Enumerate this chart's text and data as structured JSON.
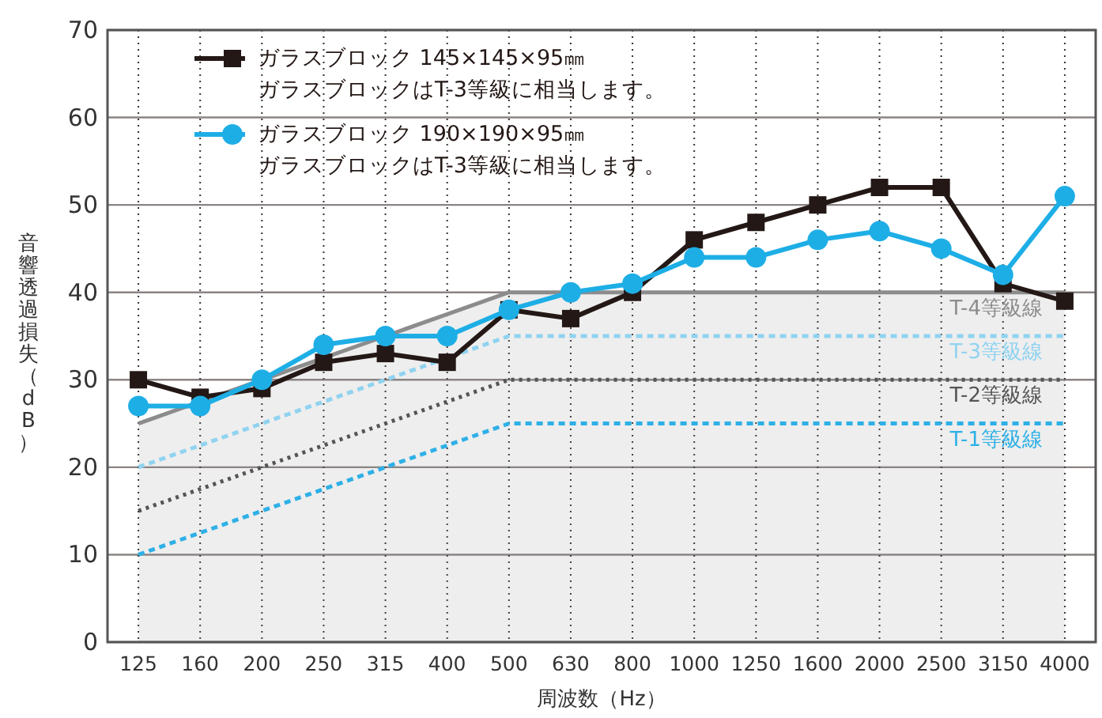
{
  "chart_data": {
    "type": "line",
    "xlabel": "周波数（Hz）",
    "ylabel": "音響透過損失（dB）",
    "categories": [
      "125",
      "160",
      "200",
      "250",
      "315",
      "400",
      "500",
      "630",
      "800",
      "1000",
      "1250",
      "1600",
      "2000",
      "2500",
      "3150",
      "4000"
    ],
    "annotations": [
      "ガラスブロックはT-3等級に相当します。",
      "ガラスブロックはT-3等級に相当します。"
    ],
    "ylim": [
      0,
      70
    ],
    "yticks": [
      0,
      10,
      20,
      30,
      40,
      50,
      60,
      70
    ],
    "grid": true,
    "legend": "top left",
    "series": [
      {
        "name": "T-4等級線",
        "type": "area",
        "color": "#8c8c8c",
        "marker": "none",
        "line_style": "solid",
        "values": [
          25,
          27.5,
          30,
          32.5,
          35,
          37.5,
          40,
          40,
          40,
          40,
          40,
          40,
          40,
          40,
          40,
          40
        ]
      },
      {
        "name": "T-3等級線",
        "color": "#8fd3f0",
        "marker": "none",
        "line_style": "dashed",
        "values": [
          20,
          22.5,
          25,
          27.5,
          30,
          32.5,
          35,
          35,
          35,
          35,
          35,
          35,
          35,
          35,
          35,
          35
        ]
      },
      {
        "name": "T-2等級線",
        "color": "#555555",
        "marker": "none",
        "line_style": "dotted",
        "values": [
          15,
          17.5,
          20,
          22.5,
          25,
          27.5,
          30,
          30,
          30,
          30,
          30,
          30,
          30,
          30,
          30,
          30
        ]
      },
      {
        "name": "T-1等級線",
        "color": "#2eb0e6",
        "marker": "none",
        "line_style": "dashed",
        "values": [
          10,
          12.5,
          15,
          17.5,
          20,
          22.5,
          25,
          25,
          25,
          25,
          25,
          25,
          25,
          25,
          25,
          25
        ]
      },
      {
        "name": "ガラスブロック 145×145×95㎜",
        "color": "#231815",
        "marker": "square",
        "line_style": "solid",
        "values": [
          30,
          28,
          29,
          32,
          33,
          32,
          38,
          37,
          40,
          46,
          48,
          50,
          52,
          52,
          41,
          39
        ]
      },
      {
        "name": "ガラスブロック 190×190×95㎜",
        "color": "#1eaee6",
        "marker": "circle",
        "line_style": "solid",
        "values": [
          27,
          27,
          30,
          34,
          35,
          35,
          38,
          40,
          41,
          44,
          44,
          46,
          47,
          45,
          42,
          51
        ]
      }
    ]
  }
}
